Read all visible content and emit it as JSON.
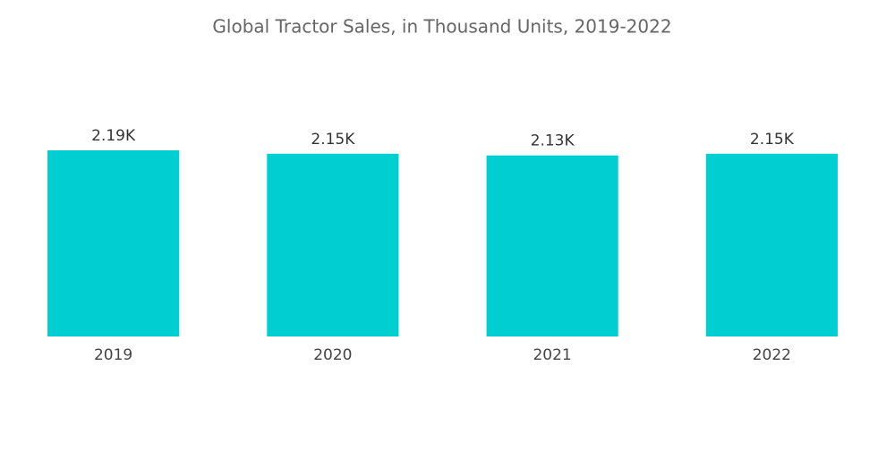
{
  "chart_data": {
    "type": "bar",
    "title": "Global Tractor Sales, in Thousand Units, 2019-2022",
    "categories": [
      "2019",
      "2020",
      "2021",
      "2022"
    ],
    "values": [
      2.19,
      2.15,
      2.13,
      2.15
    ],
    "value_labels": [
      "2.19K",
      "2.15K",
      "2.13K",
      "2.15K"
    ],
    "color": "#00ced1"
  }
}
